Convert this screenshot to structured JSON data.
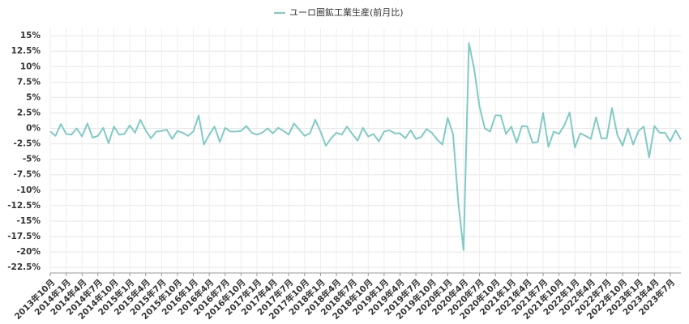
{
  "chart_data": {
    "type": "line",
    "categories": [
      "2013年10月",
      null,
      null,
      "2014年1月",
      null,
      null,
      "2014年4月",
      null,
      null,
      "2014年7月",
      null,
      null,
      "2014年10月",
      null,
      null,
      "2015年1月",
      null,
      null,
      "2015年4月",
      null,
      null,
      "2015年7月",
      null,
      null,
      "2015年10月",
      null,
      null,
      "2016年1月",
      null,
      null,
      "2016年4月",
      null,
      null,
      "2016年7月",
      null,
      null,
      "2016年10月",
      null,
      null,
      "2017年1月",
      null,
      null,
      "2017年4月",
      null,
      null,
      "2017年7月",
      null,
      null,
      "2017年10月",
      null,
      null,
      "2018年1月",
      null,
      null,
      "2018年4月",
      null,
      null,
      "2018年7月",
      null,
      null,
      "2018年10月",
      null,
      null,
      "2019年1月",
      null,
      null,
      "2019年4月",
      null,
      null,
      "2019年7月",
      null,
      null,
      "2019年10月",
      null,
      null,
      "2020年1月",
      null,
      null,
      "2020年4月",
      null,
      null,
      "2020年7月",
      null,
      null,
      "2020年10月",
      null,
      null,
      "2021年1月",
      null,
      null,
      "2021年4月",
      null,
      null,
      "2021年7月",
      null,
      null,
      "2021年10月",
      null,
      null,
      "2022年1月",
      null,
      null,
      "2022年4月",
      null,
      null,
      "2022年7月",
      null,
      null,
      "2022年10月",
      null,
      null,
      "2023年1月",
      null,
      null,
      "2023年4月",
      null,
      null,
      "2023年7月",
      null,
      null
    ],
    "series": [
      {
        "name": "ユーロ圏鉱工業生産(前月比)",
        "color": "#80cbc4",
        "values": [
          -0.5,
          -1.2,
          0.7,
          -0.9,
          -1.0,
          0,
          -1.3,
          0.8,
          -1.5,
          -1.2,
          0.1,
          -2.4,
          0.3,
          -1.0,
          -0.9,
          0.5,
          -0.7,
          1.4,
          -0.3,
          -1.6,
          -0.5,
          -0.4,
          -0.2,
          -1.7,
          -0.4,
          -0.7,
          -1.2,
          -0.5,
          2.1,
          -2.6,
          -1.0,
          0.3,
          -2.2,
          0.1,
          -0.5,
          -0.5,
          -0.4,
          0.4,
          -0.7,
          -1.0,
          -0.7,
          0,
          -0.8,
          0.1,
          -0.4,
          -1.0,
          0.8,
          -0.2,
          -1.2,
          -0.8,
          1.4,
          -0.5,
          -2.8,
          -1.6,
          -0.7,
          -1.0,
          0.3,
          -0.9,
          -2.0,
          0.1,
          -1.3,
          -0.9,
          -2.1,
          -0.5,
          -0.3,
          -0.8,
          -0.8,
          -1.6,
          -0.3,
          -1.7,
          -1.4,
          -0.1,
          -0.7,
          -1.8,
          -2.6,
          1.7,
          -0.9,
          -12,
          -19.7,
          13.8,
          9.6,
          3.5,
          0,
          -0.5,
          2.1,
          2.1,
          -0.9,
          0.3,
          -2.3,
          0.4,
          0.3,
          -2.3,
          -2.2,
          2.5,
          -3.0,
          -0.5,
          -0.9,
          0.5,
          2.6,
          -3.1,
          -0.8,
          -1.2,
          -1.7,
          1.8,
          -1.6,
          -1.6,
          3.3,
          -1.0,
          -2.8,
          0,
          -2.6,
          -0.4,
          0.3,
          -4.7,
          0.4,
          -0.7,
          -0.7,
          -2.1,
          -0.3,
          -1.8
        ]
      }
    ],
    "ylim": [
      -23.4,
      16.2
    ],
    "yticks": [
      {
        "value": 15,
        "label": "15%"
      },
      {
        "value": 12.5,
        "label": "12.5%"
      },
      {
        "value": 10,
        "label": "10%"
      },
      {
        "value": 7.5,
        "label": "7.5%"
      },
      {
        "value": 5,
        "label": "5%"
      },
      {
        "value": 2.5,
        "label": "2.5%"
      },
      {
        "value": 0,
        "label": "0%"
      },
      {
        "value": -2.5,
        "label": "-2.5%"
      },
      {
        "value": -5,
        "label": "-5%"
      },
      {
        "value": -7.5,
        "label": "-7.5%"
      },
      {
        "value": -10,
        "label": "-10%"
      },
      {
        "value": -12.5,
        "label": "-12.5%"
      },
      {
        "value": -15,
        "label": "-15%"
      },
      {
        "value": -17.5,
        "label": "-17.5%"
      },
      {
        "value": -20,
        "label": "-20%"
      },
      {
        "value": -22.5,
        "label": "-22.5%"
      }
    ],
    "grid": true,
    "legend": "top"
  }
}
